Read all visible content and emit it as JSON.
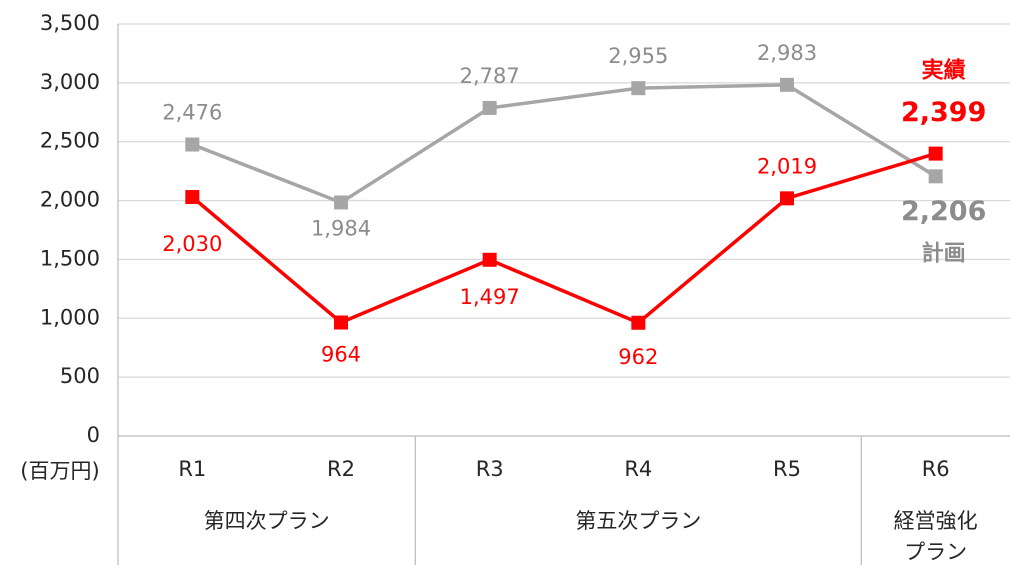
{
  "chart_data": {
    "type": "line",
    "y_unit_label": "(百万円)",
    "categories": [
      "R1",
      "R2",
      "R3",
      "R4",
      "R5",
      "R6"
    ],
    "groups": [
      {
        "label": [
          "第四次プラン"
        ],
        "count": 2
      },
      {
        "label": [
          "第五次プラン"
        ],
        "count": 3
      },
      {
        "label": [
          "経営強化",
          "プラン"
        ],
        "count": 1
      }
    ],
    "series": [
      {
        "name": "計画",
        "color": "#a6a6a6",
        "label_color": "#8c8c8c",
        "values": [
          2476,
          1984,
          2787,
          2955,
          2983,
          2206
        ],
        "value_labels": [
          "2,476",
          "1,984",
          "2,787",
          "2,955",
          "2,983",
          "2,206"
        ]
      },
      {
        "name": "実績",
        "color": "#ff0000",
        "label_color": "#ff0000",
        "values": [
          2030,
          964,
          1497,
          962,
          2019,
          2399
        ],
        "value_labels": [
          "2,030",
          "964",
          "1,497",
          "962",
          "2,019",
          "2,399"
        ]
      }
    ],
    "ylim": [
      0,
      3500
    ],
    "yticks": [
      0,
      500,
      {
        "value": 1000,
        "label": "1,000"
      },
      {
        "value": 1500,
        "label": "1,500"
      },
      {
        "value": 2000,
        "label": "2,000"
      },
      {
        "value": 2500,
        "label": "2,500"
      },
      {
        "value": 3000,
        "label": "3,000"
      },
      {
        "value": 3500,
        "label": "3,500"
      }
    ],
    "grid": true
  }
}
